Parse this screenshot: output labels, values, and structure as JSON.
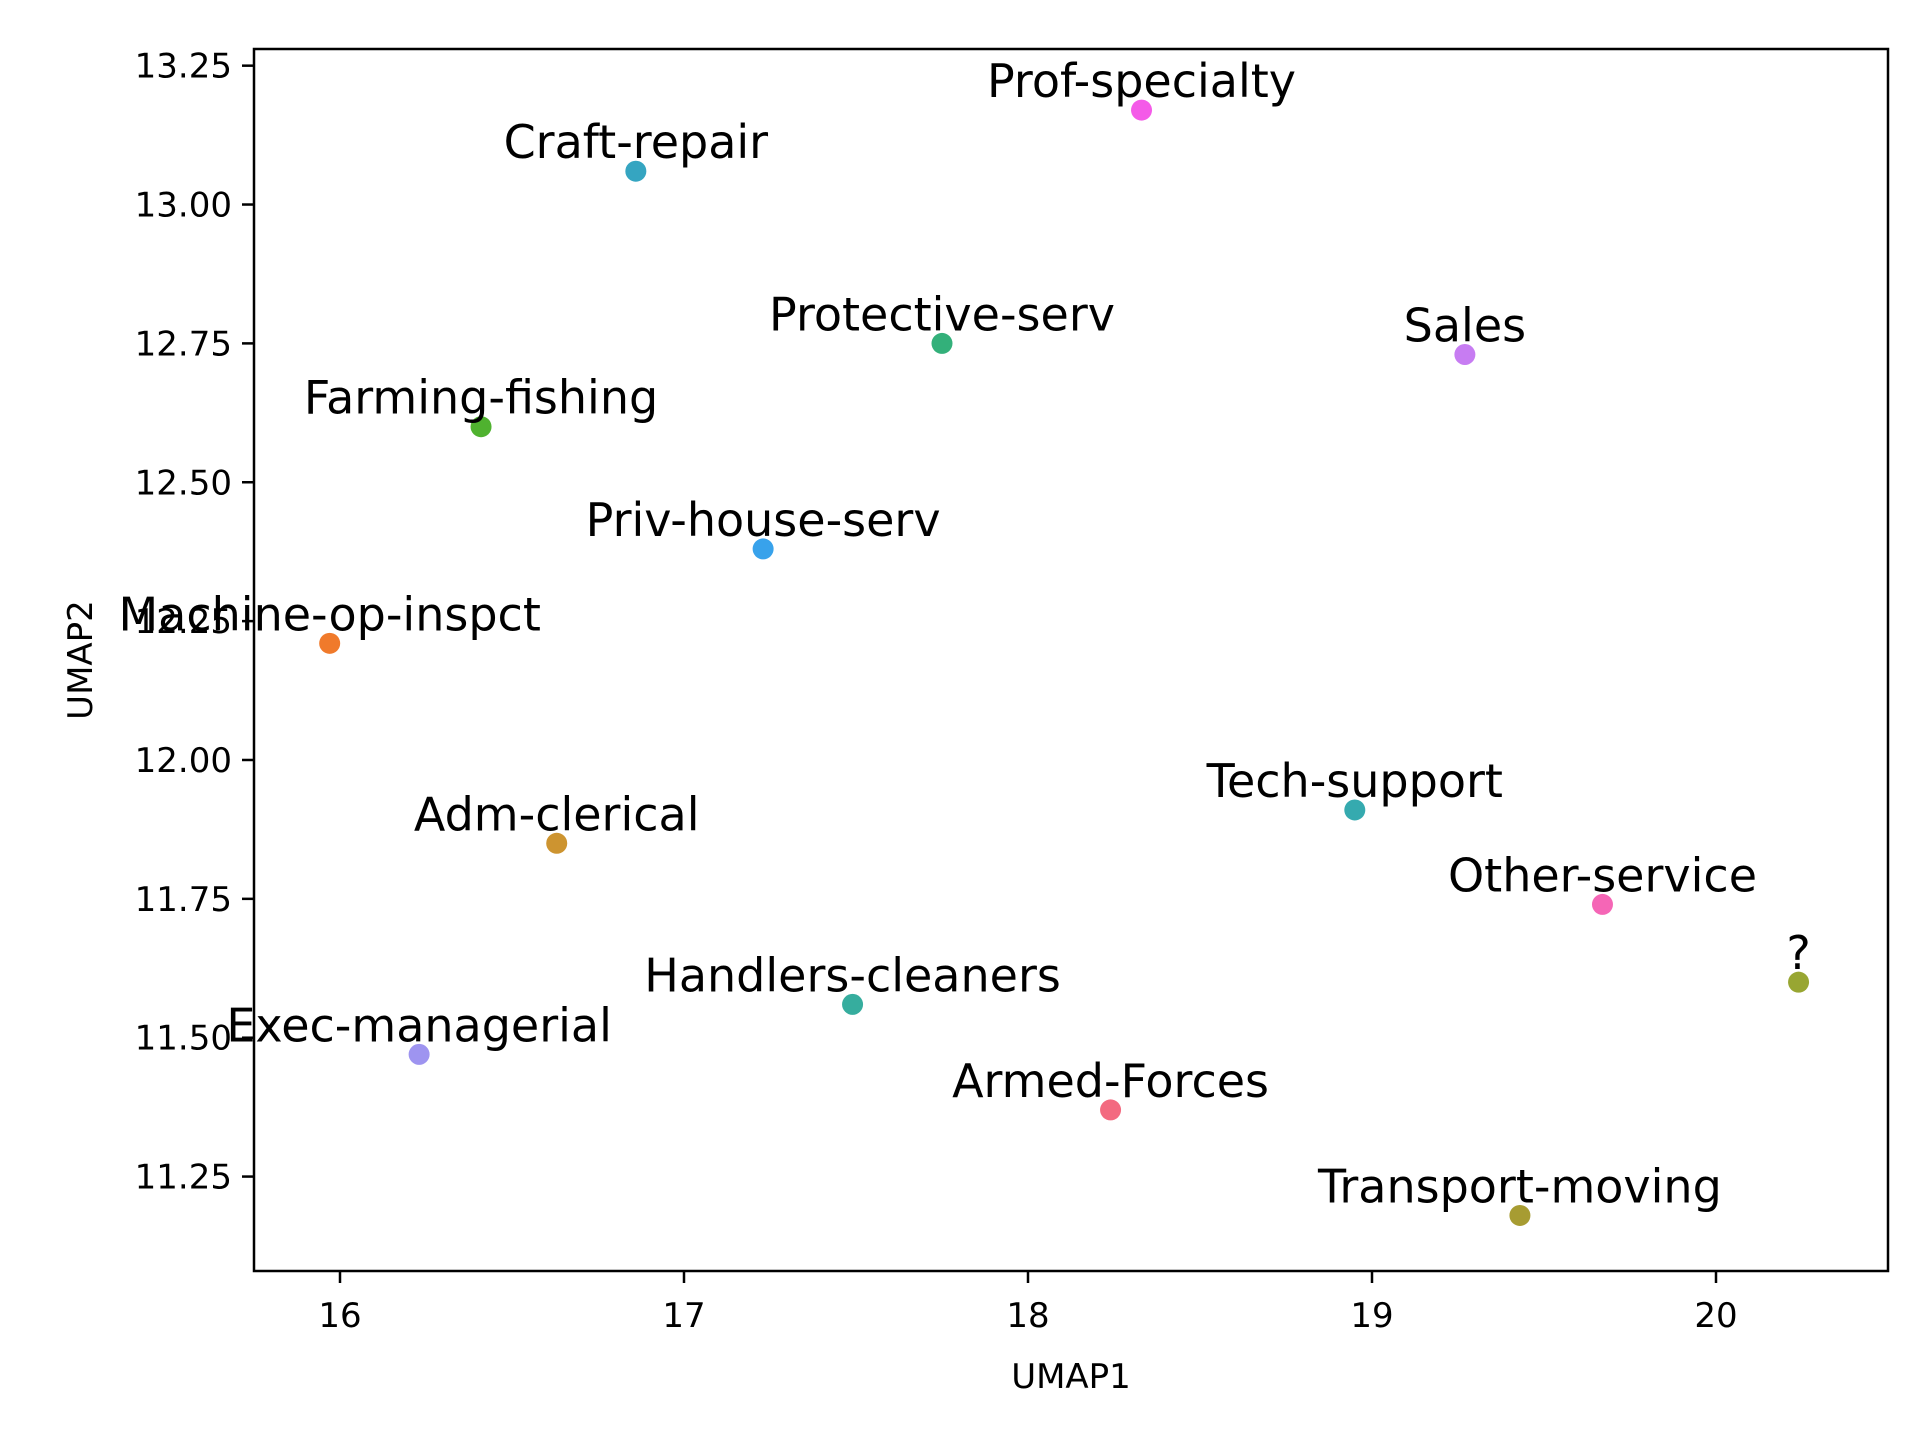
{
  "chart_data": {
    "type": "scatter",
    "title": "",
    "xlabel": "UMAP1",
    "ylabel": "UMAP2",
    "xlim": [
      15.75,
      20.5
    ],
    "ylim": [
      11.08,
      13.28
    ],
    "xticks": [
      16,
      17,
      18,
      19,
      20
    ],
    "yticks": [
      11.25,
      11.5,
      11.75,
      12.0,
      12.25,
      12.5,
      12.75,
      13.0,
      13.25
    ],
    "xtick_labels": [
      "16",
      "17",
      "18",
      "19",
      "20"
    ],
    "ytick_labels": [
      "11.25",
      "11.50",
      "11.75",
      "12.00",
      "12.25",
      "12.50",
      "12.75",
      "13.00",
      "13.25"
    ],
    "grid": false,
    "legend": "none",
    "points": [
      {
        "label": "Prof-specialty",
        "x": 18.33,
        "y": 13.17,
        "color": "#f45ae8"
      },
      {
        "label": "Craft-repair",
        "x": 16.86,
        "y": 13.06,
        "color": "#35a5c1"
      },
      {
        "label": "Protective-serv",
        "x": 17.75,
        "y": 12.75,
        "color": "#33b07a"
      },
      {
        "label": "Sales",
        "x": 19.27,
        "y": 12.73,
        "color": "#c77cf2"
      },
      {
        "label": "Farming-fishing",
        "x": 16.41,
        "y": 12.6,
        "color": "#4fb22f"
      },
      {
        "label": "Priv-house-serv",
        "x": 17.23,
        "y": 12.38,
        "color": "#38a2eb"
      },
      {
        "label": "Machine-op-inspct",
        "x": 15.97,
        "y": 12.21,
        "color": "#f07a2b"
      },
      {
        "label": "Tech-support",
        "x": 18.95,
        "y": 11.91,
        "color": "#35aaaf"
      },
      {
        "label": "Adm-clerical",
        "x": 16.63,
        "y": 11.85,
        "color": "#cd9430"
      },
      {
        "label": "Other-service",
        "x": 19.67,
        "y": 11.74,
        "color": "#f566b6"
      },
      {
        "label": "?",
        "x": 20.24,
        "y": 11.6,
        "color": "#98a632"
      },
      {
        "label": "Handlers-cleaners",
        "x": 17.49,
        "y": 11.56,
        "color": "#36ad9e"
      },
      {
        "label": "Exec-managerial",
        "x": 16.23,
        "y": 11.47,
        "color": "#9e94f0"
      },
      {
        "label": "Armed-Forces",
        "x": 18.24,
        "y": 11.37,
        "color": "#f36a80"
      },
      {
        "label": "Transport-moving",
        "x": 19.43,
        "y": 11.18,
        "color": "#a79c32"
      }
    ]
  }
}
